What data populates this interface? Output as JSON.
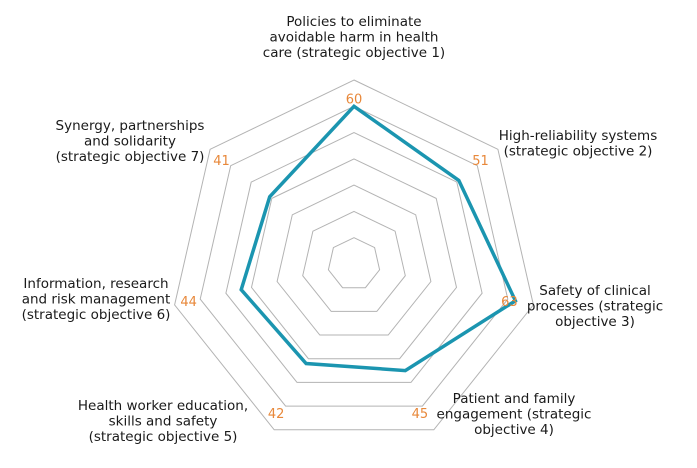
{
  "chart_data": {
    "type": "radar",
    "title": "",
    "axes": [
      {
        "label_lines": [
          "Policies to eliminate",
          "avoidable harm in health",
          "care (strategic objective 1)"
        ]
      },
      {
        "label_lines": [
          "High-reliability systems",
          "(strategic objective 2)"
        ]
      },
      {
        "label_lines": [
          "Safety of clinical",
          "processes (strategic",
          "objective 3)"
        ]
      },
      {
        "label_lines": [
          "Patient and family",
          "engagement (strategic",
          "objective 4)"
        ]
      },
      {
        "label_lines": [
          "Health worker education,",
          "skills and safety",
          "(strategic objective 5)"
        ]
      },
      {
        "label_lines": [
          "Information, research",
          "and risk management",
          "(strategic objective 6)"
        ]
      },
      {
        "label_lines": [
          "Synergy, partnerships",
          "and solidarity",
          "(strategic objective 7)"
        ]
      }
    ],
    "values": [
      60,
      51,
      63,
      45,
      42,
      44,
      41
    ],
    "value_labels": [
      "60",
      "51",
      "63",
      "45",
      "42",
      "44",
      "41"
    ],
    "rlim": [
      0,
      70
    ],
    "grid_rings": [
      10,
      20,
      30,
      40,
      50,
      60,
      70
    ],
    "colors": {
      "series": "#1b95b0",
      "value_text": "#e8883a",
      "grid": "#b3b3b3"
    }
  }
}
